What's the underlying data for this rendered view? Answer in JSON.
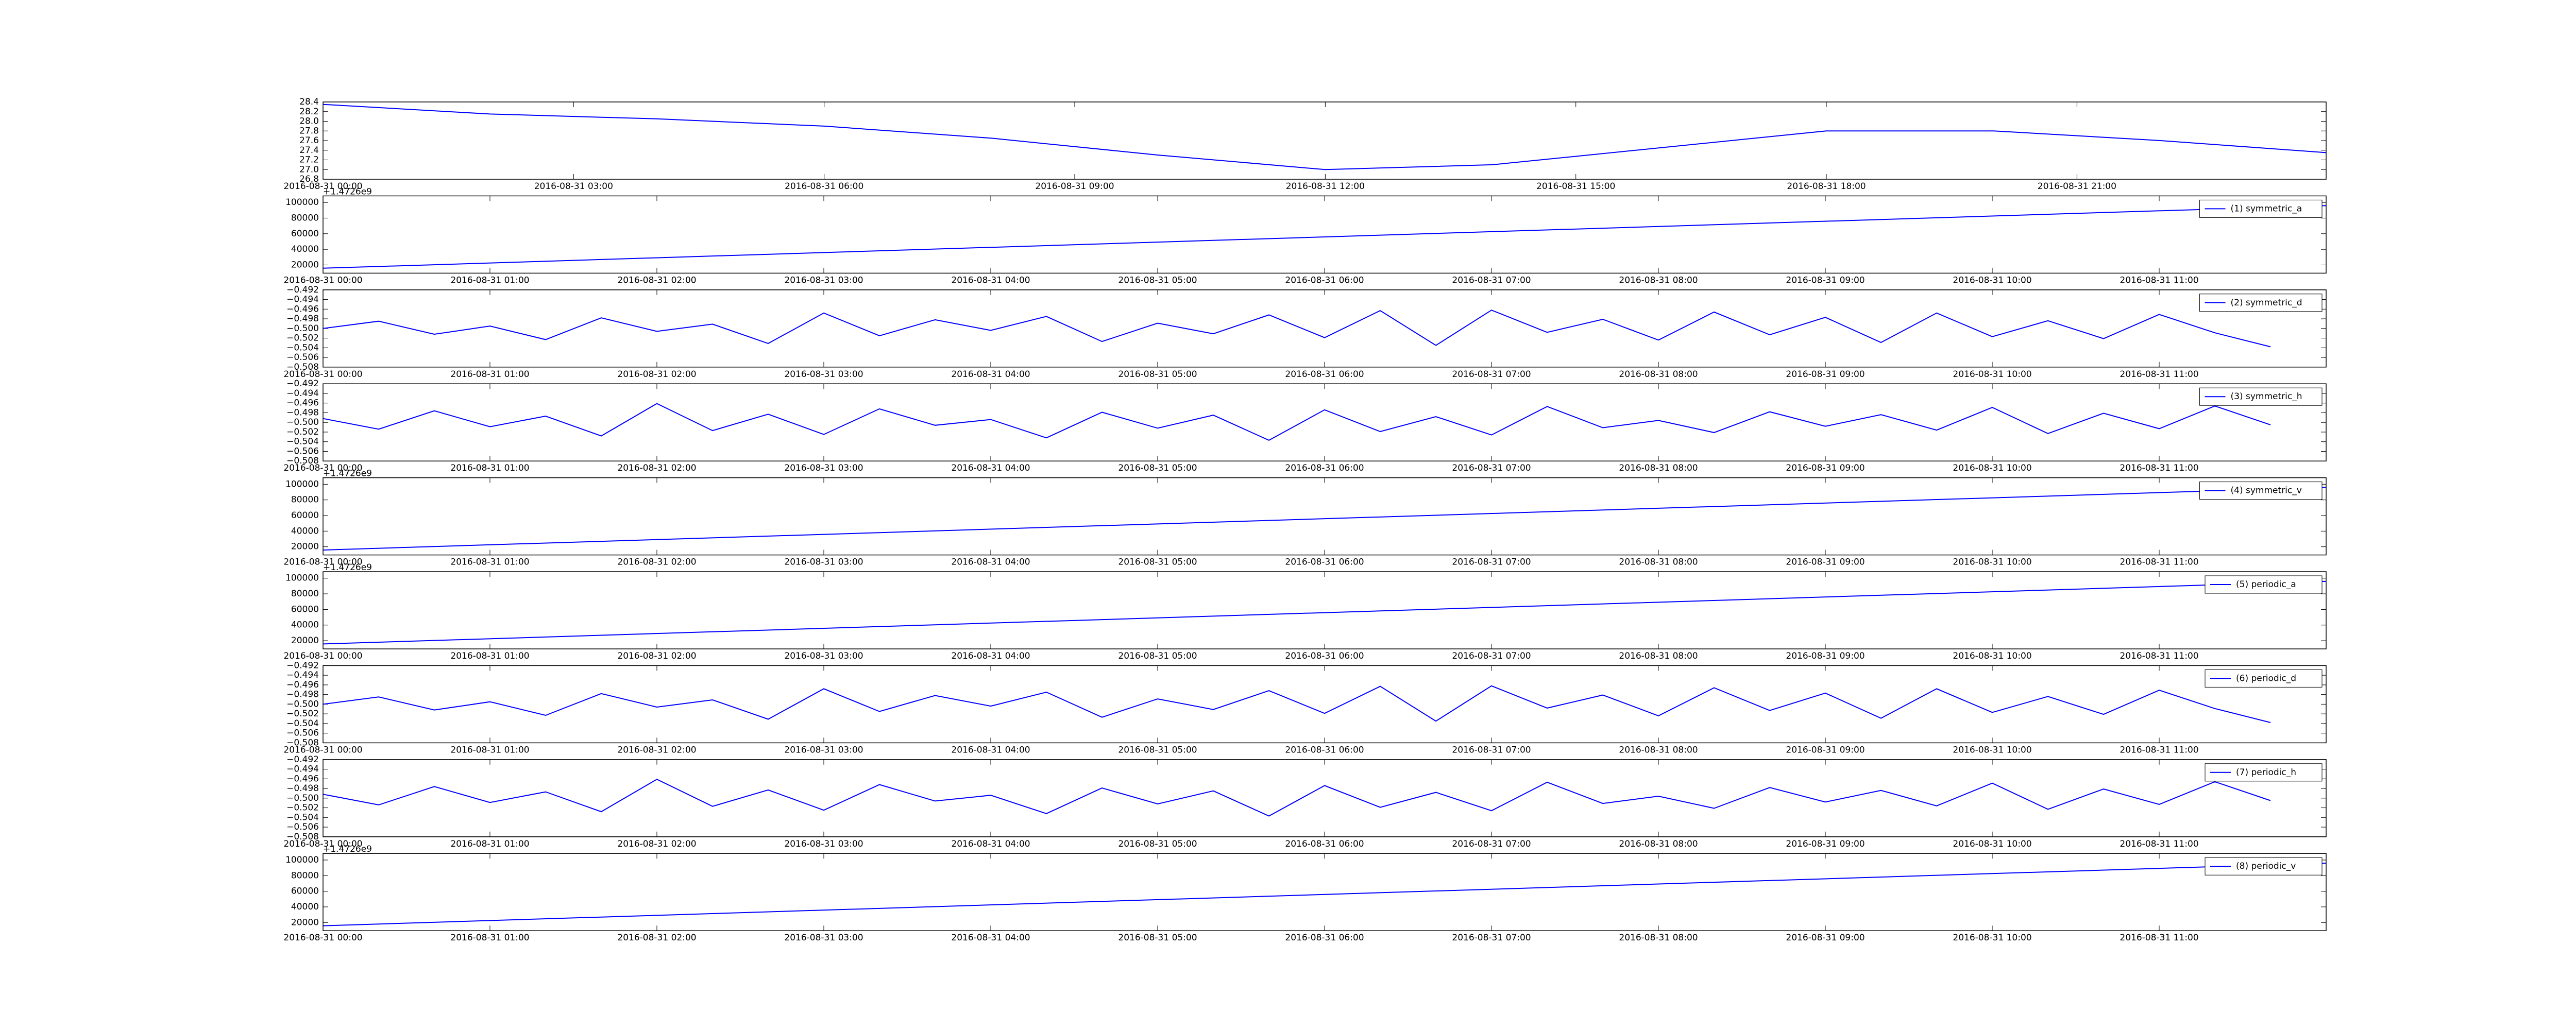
{
  "chart_data": [
    {
      "type": "line",
      "x": [
        "2016-08-31 00:00",
        "2016-08-31 02:00",
        "2016-08-31 04:00",
        "2016-08-31 06:00",
        "2016-08-31 08:00",
        "2016-08-31 10:00",
        "2016-08-31 12:00",
        "2016-08-31 14:00",
        "2016-08-31 16:00",
        "2016-08-31 18:00",
        "2016-08-31 20:00",
        "2016-08-31 22:00",
        "2016-08-31 23:59"
      ],
      "series": [
        {
          "color": "#0000ff",
          "values": [
            28.35,
            28.15,
            28.05,
            27.9,
            27.65,
            27.3,
            27.0,
            27.1,
            27.45,
            27.8,
            27.8,
            27.6,
            27.35
          ]
        }
      ],
      "xlim": [
        "2016-08-31 00:00",
        "2016-08-31 23:59"
      ],
      "xticks": [
        "2016-08-31 00:00",
        "2016-08-31 03:00",
        "2016-08-31 06:00",
        "2016-08-31 09:00",
        "2016-08-31 12:00",
        "2016-08-31 15:00",
        "2016-08-31 18:00",
        "2016-08-31 21:00"
      ],
      "ylim": [
        26.8,
        28.4
      ],
      "yticks": [
        26.8,
        27.2,
        {
          "value": 27,
          "label": "27.0"
        },
        27.4,
        27.6,
        27.8,
        {
          "value": 28,
          "label": "28.0"
        },
        28.2,
        28.4
      ]
    },
    {
      "type": "line",
      "offset_label": "+1.4726e9",
      "x": [
        "2016-08-31 00:00",
        "2016-08-31 12:00"
      ],
      "series": [
        {
          "name": "(1) symmetric_a",
          "color": "#0000ff",
          "values": [
            15800,
            96000
          ]
        }
      ],
      "xlim": [
        "2016-08-31 00:00",
        "2016-08-31 12:00"
      ],
      "xticks": [
        "2016-08-31 00:00",
        "2016-08-31 01:00",
        "2016-08-31 02:00",
        "2016-08-31 03:00",
        "2016-08-31 04:00",
        "2016-08-31 05:00",
        "2016-08-31 06:00",
        "2016-08-31 07:00",
        "2016-08-31 08:00",
        "2016-08-31 09:00",
        "2016-08-31 10:00",
        "2016-08-31 11:00"
      ],
      "ylim": [
        9500,
        108400
      ],
      "yticks": [
        20000,
        40000,
        60000,
        80000,
        100000
      ],
      "legend": "upper right"
    },
    {
      "type": "line",
      "x": [
        "2016-08-31 00:00",
        "2016-08-31 00:20",
        "2016-08-31 00:40",
        "2016-08-31 01:00",
        "2016-08-31 01:20",
        "2016-08-31 01:40",
        "2016-08-31 02:00",
        "2016-08-31 02:20",
        "2016-08-31 02:40",
        "2016-08-31 03:00",
        "2016-08-31 03:20",
        "2016-08-31 03:40",
        "2016-08-31 04:00",
        "2016-08-31 04:20",
        "2016-08-31 04:40",
        "2016-08-31 05:00",
        "2016-08-31 05:20",
        "2016-08-31 05:40",
        "2016-08-31 06:00",
        "2016-08-31 06:20",
        "2016-08-31 06:40",
        "2016-08-31 07:00",
        "2016-08-31 07:20",
        "2016-08-31 07:40",
        "2016-08-31 08:00",
        "2016-08-31 08:20",
        "2016-08-31 08:40",
        "2016-08-31 09:00",
        "2016-08-31 09:20",
        "2016-08-31 09:40",
        "2016-08-31 10:00",
        "2016-08-31 10:20",
        "2016-08-31 10:40",
        "2016-08-31 11:00",
        "2016-08-31 11:20",
        "2016-08-31 11:40"
      ],
      "series": [
        {
          "name": "(2) symmetric_d",
          "color": "#0000ff",
          "values": [
            -0.5,
            -0.4985,
            -0.5012,
            -0.4995,
            -0.5023,
            -0.4978,
            -0.5006,
            -0.4991,
            -0.5031,
            -0.4968,
            -0.5015,
            -0.4982,
            -0.5004,
            -0.4975,
            -0.5027,
            -0.4989,
            -0.5011,
            -0.4972,
            -0.5019,
            -0.4963,
            -0.5035,
            -0.4962,
            -0.5008,
            -0.4981,
            -0.5024,
            -0.4966,
            -0.5013,
            -0.4977,
            -0.5029,
            -0.4968,
            -0.5017,
            -0.4984,
            -0.5021,
            -0.4971,
            -0.5009,
            -0.5038
          ]
        }
      ],
      "xlim": [
        "2016-08-31 00:00",
        "2016-08-31 12:00"
      ],
      "xticks": [
        "2016-08-31 00:00",
        "2016-08-31 01:00",
        "2016-08-31 02:00",
        "2016-08-31 03:00",
        "2016-08-31 04:00",
        "2016-08-31 05:00",
        "2016-08-31 06:00",
        "2016-08-31 07:00",
        "2016-08-31 08:00",
        "2016-08-31 09:00",
        "2016-08-31 10:00",
        "2016-08-31 11:00"
      ],
      "ylim": [
        -0.508,
        -0.492
      ],
      "yticks": [
        {
          "value": -0.508,
          "label": "−0.508"
        },
        {
          "value": -0.506,
          "label": "−0.506"
        },
        {
          "value": -0.504,
          "label": "−0.504"
        },
        {
          "value": -0.502,
          "label": "−0.502"
        },
        {
          "value": -0.5,
          "label": "−0.500"
        },
        {
          "value": -0.498,
          "label": "−0.498"
        },
        {
          "value": -0.496,
          "label": "−0.496"
        },
        {
          "value": -0.494,
          "label": "−0.494"
        },
        {
          "value": -0.492,
          "label": "−0.492"
        }
      ],
      "legend": "upper right"
    },
    {
      "type": "line",
      "x": [
        "2016-08-31 00:00",
        "2016-08-31 00:20",
        "2016-08-31 00:40",
        "2016-08-31 01:00",
        "2016-08-31 01:20",
        "2016-08-31 01:40",
        "2016-08-31 02:00",
        "2016-08-31 02:20",
        "2016-08-31 02:40",
        "2016-08-31 03:00",
        "2016-08-31 03:20",
        "2016-08-31 03:40",
        "2016-08-31 04:00",
        "2016-08-31 04:20",
        "2016-08-31 04:40",
        "2016-08-31 05:00",
        "2016-08-31 05:20",
        "2016-08-31 05:40",
        "2016-08-31 06:00",
        "2016-08-31 06:20",
        "2016-08-31 06:40",
        "2016-08-31 07:00",
        "2016-08-31 07:20",
        "2016-08-31 07:40",
        "2016-08-31 08:00",
        "2016-08-31 08:20",
        "2016-08-31 08:40",
        "2016-08-31 09:00",
        "2016-08-31 09:20",
        "2016-08-31 09:40",
        "2016-08-31 10:00",
        "2016-08-31 10:20",
        "2016-08-31 10:40",
        "2016-08-31 11:00",
        "2016-08-31 11:20",
        "2016-08-31 11:40"
      ],
      "series": [
        {
          "name": "(3) symmetric_h",
          "color": "#0000ff",
          "values": [
            -0.4992,
            -0.5014,
            -0.4976,
            -0.5009,
            -0.4987,
            -0.5028,
            -0.4961,
            -0.5017,
            -0.4983,
            -0.5025,
            -0.4972,
            -0.5006,
            -0.4994,
            -0.5032,
            -0.4979,
            -0.5012,
            -0.4985,
            -0.5037,
            -0.4974,
            -0.5019,
            -0.4988,
            -0.5026,
            -0.4967,
            -0.5011,
            -0.4996,
            -0.5021,
            -0.4978,
            -0.5008,
            -0.4984,
            -0.5016,
            -0.4969,
            -0.5023,
            -0.4981,
            -0.5013,
            -0.4966,
            -0.5005
          ]
        }
      ],
      "xlim": [
        "2016-08-31 00:00",
        "2016-08-31 12:00"
      ],
      "xticks": [
        "2016-08-31 00:00",
        "2016-08-31 01:00",
        "2016-08-31 02:00",
        "2016-08-31 03:00",
        "2016-08-31 04:00",
        "2016-08-31 05:00",
        "2016-08-31 06:00",
        "2016-08-31 07:00",
        "2016-08-31 08:00",
        "2016-08-31 09:00",
        "2016-08-31 10:00",
        "2016-08-31 11:00"
      ],
      "ylim": [
        -0.508,
        -0.492
      ],
      "yticks": [
        {
          "value": -0.508,
          "label": "−0.508"
        },
        {
          "value": -0.506,
          "label": "−0.506"
        },
        {
          "value": -0.504,
          "label": "−0.504"
        },
        {
          "value": -0.502,
          "label": "−0.502"
        },
        {
          "value": -0.5,
          "label": "−0.500"
        },
        {
          "value": -0.498,
          "label": "−0.498"
        },
        {
          "value": -0.496,
          "label": "−0.496"
        },
        {
          "value": -0.494,
          "label": "−0.494"
        },
        {
          "value": -0.492,
          "label": "−0.492"
        }
      ],
      "legend": "upper right"
    },
    {
      "type": "line",
      "offset_label": "+1.4726e9",
      "x": [
        "2016-08-31 00:00",
        "2016-08-31 12:00"
      ],
      "series": [
        {
          "name": "(4) symmetric_v",
          "color": "#0000ff",
          "values": [
            15800,
            96000
          ]
        }
      ],
      "xlim": [
        "2016-08-31 00:00",
        "2016-08-31 12:00"
      ],
      "xticks": [
        "2016-08-31 00:00",
        "2016-08-31 01:00",
        "2016-08-31 02:00",
        "2016-08-31 03:00",
        "2016-08-31 04:00",
        "2016-08-31 05:00",
        "2016-08-31 06:00",
        "2016-08-31 07:00",
        "2016-08-31 08:00",
        "2016-08-31 09:00",
        "2016-08-31 10:00",
        "2016-08-31 11:00"
      ],
      "ylim": [
        9500,
        108400
      ],
      "yticks": [
        20000,
        40000,
        60000,
        80000,
        100000
      ],
      "legend": "upper right"
    },
    {
      "type": "line",
      "offset_label": "+1.4726e9",
      "x": [
        "2016-08-31 00:00",
        "2016-08-31 12:00"
      ],
      "series": [
        {
          "name": "(5) periodic_a",
          "color": "#0000ff",
          "values": [
            15800,
            96000
          ]
        }
      ],
      "xlim": [
        "2016-08-31 00:00",
        "2016-08-31 12:00"
      ],
      "xticks": [
        "2016-08-31 00:00",
        "2016-08-31 01:00",
        "2016-08-31 02:00",
        "2016-08-31 03:00",
        "2016-08-31 04:00",
        "2016-08-31 05:00",
        "2016-08-31 06:00",
        "2016-08-31 07:00",
        "2016-08-31 08:00",
        "2016-08-31 09:00",
        "2016-08-31 10:00",
        "2016-08-31 11:00"
      ],
      "ylim": [
        9500,
        108400
      ],
      "yticks": [
        20000,
        40000,
        60000,
        80000,
        100000
      ],
      "legend": "upper right"
    },
    {
      "type": "line",
      "x": [
        "2016-08-31 00:00",
        "2016-08-31 00:20",
        "2016-08-31 00:40",
        "2016-08-31 01:00",
        "2016-08-31 01:20",
        "2016-08-31 01:40",
        "2016-08-31 02:00",
        "2016-08-31 02:20",
        "2016-08-31 02:40",
        "2016-08-31 03:00",
        "2016-08-31 03:20",
        "2016-08-31 03:40",
        "2016-08-31 04:00",
        "2016-08-31 04:20",
        "2016-08-31 04:40",
        "2016-08-31 05:00",
        "2016-08-31 05:20",
        "2016-08-31 05:40",
        "2016-08-31 06:00",
        "2016-08-31 06:20",
        "2016-08-31 06:40",
        "2016-08-31 07:00",
        "2016-08-31 07:20",
        "2016-08-31 07:40",
        "2016-08-31 08:00",
        "2016-08-31 08:20",
        "2016-08-31 08:40",
        "2016-08-31 09:00",
        "2016-08-31 09:20",
        "2016-08-31 09:40",
        "2016-08-31 10:00",
        "2016-08-31 10:20",
        "2016-08-31 10:40",
        "2016-08-31 11:00",
        "2016-08-31 11:20",
        "2016-08-31 11:40"
      ],
      "series": [
        {
          "name": "(6) periodic_d",
          "color": "#0000ff",
          "values": [
            -0.5,
            -0.4985,
            -0.5012,
            -0.4995,
            -0.5023,
            -0.4978,
            -0.5006,
            -0.4991,
            -0.5031,
            -0.4968,
            -0.5015,
            -0.4982,
            -0.5004,
            -0.4975,
            -0.5027,
            -0.4989,
            -0.5011,
            -0.4972,
            -0.5019,
            -0.4963,
            -0.5035,
            -0.4962,
            -0.5008,
            -0.4981,
            -0.5024,
            -0.4966,
            -0.5013,
            -0.4977,
            -0.5029,
            -0.4968,
            -0.5017,
            -0.4984,
            -0.5021,
            -0.4971,
            -0.5009,
            -0.5038
          ]
        }
      ],
      "xlim": [
        "2016-08-31 00:00",
        "2016-08-31 12:00"
      ],
      "xticks": [
        "2016-08-31 00:00",
        "2016-08-31 01:00",
        "2016-08-31 02:00",
        "2016-08-31 03:00",
        "2016-08-31 04:00",
        "2016-08-31 05:00",
        "2016-08-31 06:00",
        "2016-08-31 07:00",
        "2016-08-31 08:00",
        "2016-08-31 09:00",
        "2016-08-31 10:00",
        "2016-08-31 11:00"
      ],
      "ylim": [
        -0.508,
        -0.492
      ],
      "yticks": [
        {
          "value": -0.508,
          "label": "−0.508"
        },
        {
          "value": -0.506,
          "label": "−0.506"
        },
        {
          "value": -0.504,
          "label": "−0.504"
        },
        {
          "value": -0.502,
          "label": "−0.502"
        },
        {
          "value": -0.5,
          "label": "−0.500"
        },
        {
          "value": -0.498,
          "label": "−0.498"
        },
        {
          "value": -0.496,
          "label": "−0.496"
        },
        {
          "value": -0.494,
          "label": "−0.494"
        },
        {
          "value": -0.492,
          "label": "−0.492"
        }
      ],
      "legend": "upper right"
    },
    {
      "type": "line",
      "x": [
        "2016-08-31 00:00",
        "2016-08-31 00:20",
        "2016-08-31 00:40",
        "2016-08-31 01:00",
        "2016-08-31 01:20",
        "2016-08-31 01:40",
        "2016-08-31 02:00",
        "2016-08-31 02:20",
        "2016-08-31 02:40",
        "2016-08-31 03:00",
        "2016-08-31 03:20",
        "2016-08-31 03:40",
        "2016-08-31 04:00",
        "2016-08-31 04:20",
        "2016-08-31 04:40",
        "2016-08-31 05:00",
        "2016-08-31 05:20",
        "2016-08-31 05:40",
        "2016-08-31 06:00",
        "2016-08-31 06:20",
        "2016-08-31 06:40",
        "2016-08-31 07:00",
        "2016-08-31 07:20",
        "2016-08-31 07:40",
        "2016-08-31 08:00",
        "2016-08-31 08:20",
        "2016-08-31 08:40",
        "2016-08-31 09:00",
        "2016-08-31 09:20",
        "2016-08-31 09:40",
        "2016-08-31 10:00",
        "2016-08-31 10:20",
        "2016-08-31 10:40",
        "2016-08-31 11:00",
        "2016-08-31 11:20",
        "2016-08-31 11:40"
      ],
      "series": [
        {
          "name": "(7) periodic_h",
          "color": "#0000ff",
          "values": [
            -0.4992,
            -0.5014,
            -0.4976,
            -0.5009,
            -0.4987,
            -0.5028,
            -0.4961,
            -0.5017,
            -0.4983,
            -0.5025,
            -0.4972,
            -0.5006,
            -0.4994,
            -0.5032,
            -0.4979,
            -0.5012,
            -0.4985,
            -0.5037,
            -0.4974,
            -0.5019,
            -0.4988,
            -0.5026,
            -0.4967,
            -0.5011,
            -0.4996,
            -0.5021,
            -0.4978,
            -0.5008,
            -0.4984,
            -0.5016,
            -0.4969,
            -0.5023,
            -0.4981,
            -0.5013,
            -0.4966,
            -0.5005
          ]
        }
      ],
      "xlim": [
        "2016-08-31 00:00",
        "2016-08-31 12:00"
      ],
      "xticks": [
        "2016-08-31 00:00",
        "2016-08-31 01:00",
        "2016-08-31 02:00",
        "2016-08-31 03:00",
        "2016-08-31 04:00",
        "2016-08-31 05:00",
        "2016-08-31 06:00",
        "2016-08-31 07:00",
        "2016-08-31 08:00",
        "2016-08-31 09:00",
        "2016-08-31 10:00",
        "2016-08-31 11:00"
      ],
      "ylim": [
        -0.508,
        -0.492
      ],
      "yticks": [
        {
          "value": -0.508,
          "label": "−0.508"
        },
        {
          "value": -0.506,
          "label": "−0.506"
        },
        {
          "value": -0.504,
          "label": "−0.504"
        },
        {
          "value": -0.502,
          "label": "−0.502"
        },
        {
          "value": -0.5,
          "label": "−0.500"
        },
        {
          "value": -0.498,
          "label": "−0.498"
        },
        {
          "value": -0.496,
          "label": "−0.496"
        },
        {
          "value": -0.494,
          "label": "−0.494"
        },
        {
          "value": -0.492,
          "label": "−0.492"
        }
      ],
      "legend": "upper right"
    },
    {
      "type": "line",
      "offset_label": "+1.4726e9",
      "x": [
        "2016-08-31 00:00",
        "2016-08-31 12:00"
      ],
      "series": [
        {
          "name": "(8) periodic_v",
          "color": "#0000ff",
          "values": [
            15800,
            96000
          ]
        }
      ],
      "xlim": [
        "2016-08-31 00:00",
        "2016-08-31 12:00"
      ],
      "xticks": [
        "2016-08-31 00:00",
        "2016-08-31 01:00",
        "2016-08-31 02:00",
        "2016-08-31 03:00",
        "2016-08-31 04:00",
        "2016-08-31 05:00",
        "2016-08-31 06:00",
        "2016-08-31 07:00",
        "2016-08-31 08:00",
        "2016-08-31 09:00",
        "2016-08-31 10:00",
        "2016-08-31 11:00"
      ],
      "ylim": [
        9500,
        108400
      ],
      "yticks": [
        20000,
        40000,
        60000,
        80000,
        100000
      ],
      "legend": "upper right"
    }
  ]
}
